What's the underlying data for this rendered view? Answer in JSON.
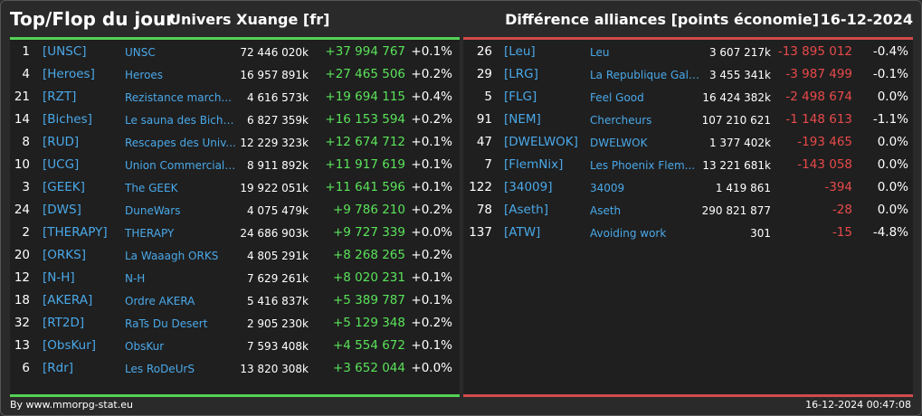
{
  "header": {
    "title": "Top/Flop du jour",
    "universe": "Univers Xuange [fr]",
    "metric": "Différence alliances [points économie]",
    "date": "16-12-2024"
  },
  "top": [
    {
      "rank": "1",
      "tag": "[UNSC]",
      "name": "UNSC",
      "total": "72 446 020k",
      "diff": "+37 994 767",
      "pct": "+0.1%"
    },
    {
      "rank": "4",
      "tag": "[Heroes]",
      "name": "Heroes",
      "total": "16 957 891k",
      "diff": "+27 465 506",
      "pct": "+0.2%"
    },
    {
      "rank": "21",
      "tag": "[RZT]",
      "name": "Rezistance march...",
      "total": "4 616 573k",
      "diff": "+19 694 115",
      "pct": "+0.4%"
    },
    {
      "rank": "14",
      "tag": "[Biches]",
      "name": "Le sauna des Biche...",
      "total": "6 827 359k",
      "diff": "+16 153 594",
      "pct": "+0.2%"
    },
    {
      "rank": "8",
      "tag": "[RUD]",
      "name": "Rescapes des Univ...",
      "total": "12 229 323k",
      "diff": "+12 674 712",
      "pct": "+0.1%"
    },
    {
      "rank": "10",
      "tag": "[UCG]",
      "name": "Union Commerciale...",
      "total": "8 911 892k",
      "diff": "+11 917 619",
      "pct": "+0.1%"
    },
    {
      "rank": "3",
      "tag": "[GEEK]",
      "name": "The GEEK",
      "total": "19 922 051k",
      "diff": "+11 641 596",
      "pct": "+0.1%"
    },
    {
      "rank": "24",
      "tag": "[DWS]",
      "name": "DuneWars",
      "total": "4 075 479k",
      "diff": "+9 786 210",
      "pct": "+0.2%"
    },
    {
      "rank": "2",
      "tag": "[THERAPY]",
      "name": "THERAPY",
      "total": "24 686 903k",
      "diff": "+9 727 339",
      "pct": "+0.0%"
    },
    {
      "rank": "20",
      "tag": "[ORKS]",
      "name": "La Waaagh ORKS",
      "total": "4 805 291k",
      "diff": "+8 268 265",
      "pct": "+0.2%"
    },
    {
      "rank": "12",
      "tag": "[N-H]",
      "name": "N-H",
      "total": "7 629 261k",
      "diff": "+8 020 231",
      "pct": "+0.1%"
    },
    {
      "rank": "18",
      "tag": "[AKERA]",
      "name": "Ordre AKERA",
      "total": "5 416 837k",
      "diff": "+5 389 787",
      "pct": "+0.1%"
    },
    {
      "rank": "32",
      "tag": "[RT2D]",
      "name": "RaTs Du Desert",
      "total": "2 905 230k",
      "diff": "+5 129 348",
      "pct": "+0.2%"
    },
    {
      "rank": "13",
      "tag": "[ObsKur]",
      "name": "ObsKur",
      "total": "7 593 408k",
      "diff": "+4 554 672",
      "pct": "+0.1%"
    },
    {
      "rank": "6",
      "tag": "[Rdr]",
      "name": "Les RoDeUrS",
      "total": "13 820 308k",
      "diff": "+3 652 044",
      "pct": "+0.0%"
    }
  ],
  "flop": [
    {
      "rank": "26",
      "tag": "[Leu]",
      "name": "Leu",
      "total": "3 607 217k",
      "diff": "-13 895 012",
      "pct": "-0.4%"
    },
    {
      "rank": "29",
      "tag": "[LRG]",
      "name": "La Republique Gala...",
      "total": "3 455 341k",
      "diff": "-3 987 499",
      "pct": "-0.1%"
    },
    {
      "rank": "5",
      "tag": "[FLG]",
      "name": "Feel Good",
      "total": "16 424 382k",
      "diff": "-2 498 674",
      "pct": "0.0%"
    },
    {
      "rank": "91",
      "tag": "[NEM]",
      "name": "Chercheurs",
      "total": "107 210 621",
      "diff": "-1 148 613",
      "pct": "-1.1%"
    },
    {
      "rank": "47",
      "tag": "[DWELWOK]",
      "name": "DWELWOK",
      "total": "1 377 402k",
      "diff": "-193 465",
      "pct": "0.0%"
    },
    {
      "rank": "7",
      "tag": "[FlemNix]",
      "name": "Les Phoenix Flem...",
      "total": "13 221 681k",
      "diff": "-143 058",
      "pct": "0.0%"
    },
    {
      "rank": "122",
      "tag": "[34009]",
      "name": "34009",
      "total": "1 419 861",
      "diff": "-394",
      "pct": "0.0%"
    },
    {
      "rank": "78",
      "tag": "[Aseth]",
      "name": "Aseth",
      "total": "290 821 877",
      "diff": "-28",
      "pct": "0.0%"
    },
    {
      "rank": "137",
      "tag": "[ATW]",
      "name": "Avoiding work",
      "total": "301",
      "diff": "-15",
      "pct": "-4.8%"
    }
  ],
  "footer": {
    "credit": "By www.mmorpg-stat.eu",
    "timestamp": "16-12-2024 00:47:08"
  },
  "colors": {
    "positive": "#5ae35a",
    "negative": "#e84a4a",
    "link": "#4aa8e8",
    "panel_bg": "#1f1f1f"
  }
}
